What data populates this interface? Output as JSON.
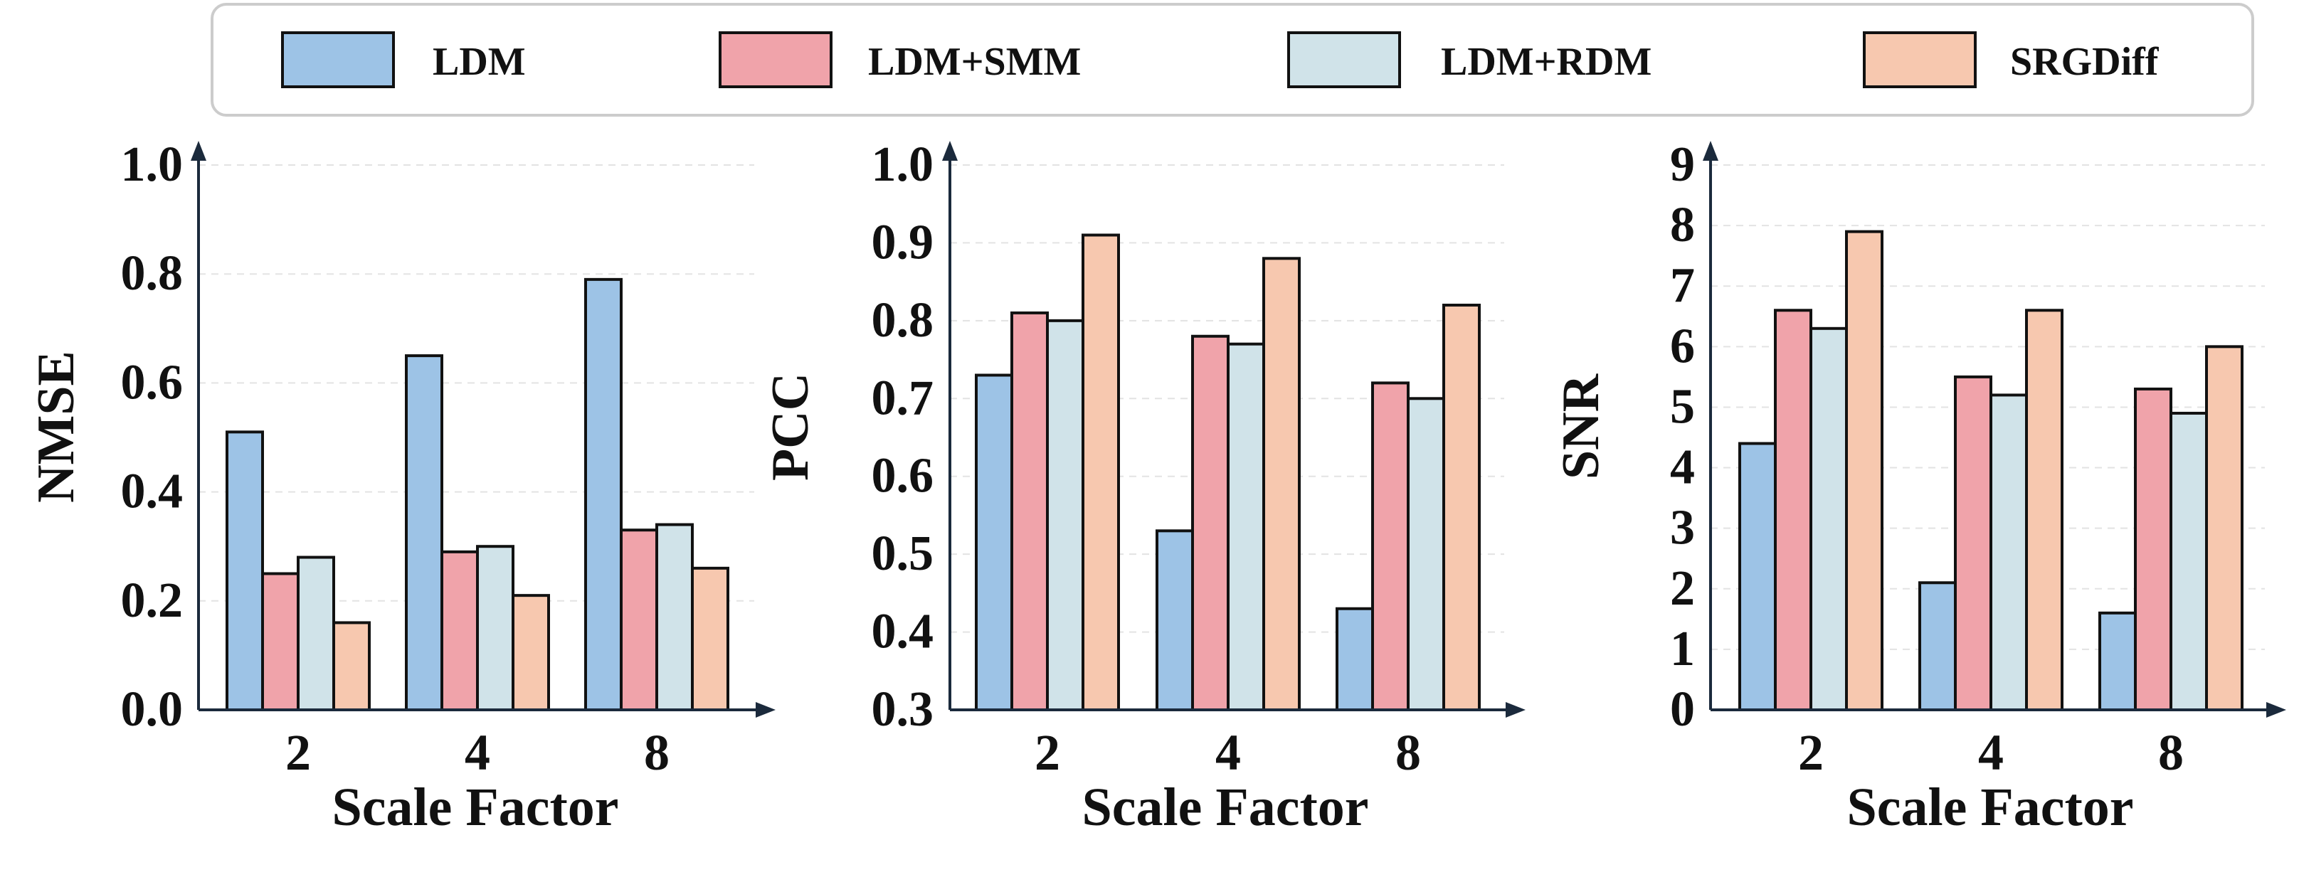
{
  "legend": {
    "placement": "top-center",
    "entries": [
      {
        "label": "LDM",
        "color": "#9DC3E6"
      },
      {
        "label": "LDM+SMM",
        "color": "#F0A3AA"
      },
      {
        "label": "LDM+RDM",
        "color": "#D0E3E9"
      },
      {
        "label": "SRGDiff",
        "color": "#F7C8AF"
      }
    ]
  },
  "chart_data": [
    {
      "type": "bar",
      "categories": [
        "2",
        "4",
        "8"
      ],
      "xlabel": "Scale Factor",
      "ylabel": "NMSE",
      "ylim": [
        0.0,
        1.0
      ],
      "yticks": [
        "0.0",
        "0.2",
        "0.4",
        "0.6",
        "0.8",
        "1.0"
      ],
      "grid": true,
      "series": [
        {
          "name": "LDM",
          "values": [
            0.51,
            0.65,
            0.79
          ]
        },
        {
          "name": "LDM+SMM",
          "values": [
            0.25,
            0.29,
            0.33
          ]
        },
        {
          "name": "LDM+RDM",
          "values": [
            0.28,
            0.3,
            0.34
          ]
        },
        {
          "name": "SRGDiff",
          "values": [
            0.16,
            0.21,
            0.26
          ]
        }
      ]
    },
    {
      "type": "bar",
      "categories": [
        "2",
        "4",
        "8"
      ],
      "xlabel": "Scale Factor",
      "ylabel": "PCC",
      "ylim": [
        0.3,
        1.0
      ],
      "yticks": [
        "0.3",
        "0.4",
        "0.5",
        "0.6",
        "0.7",
        "0.8",
        "0.9",
        "1.0"
      ],
      "grid": true,
      "series": [
        {
          "name": "LDM",
          "values": [
            0.73,
            0.53,
            0.43
          ]
        },
        {
          "name": "LDM+SMM",
          "values": [
            0.81,
            0.78,
            0.72
          ]
        },
        {
          "name": "LDM+RDM",
          "values": [
            0.8,
            0.77,
            0.7
          ]
        },
        {
          "name": "SRGDiff",
          "values": [
            0.91,
            0.88,
            0.82
          ]
        }
      ]
    },
    {
      "type": "bar",
      "categories": [
        "2",
        "4",
        "8"
      ],
      "xlabel": "Scale Factor",
      "ylabel": "SNR",
      "ylim": [
        0,
        9
      ],
      "yticks": [
        "0",
        "1",
        "2",
        "3",
        "4",
        "5",
        "6",
        "7",
        "8",
        "9"
      ],
      "grid": true,
      "series": [
        {
          "name": "LDM",
          "values": [
            4.4,
            2.1,
            1.6
          ]
        },
        {
          "name": "LDM+SMM",
          "values": [
            6.6,
            5.5,
            5.3
          ]
        },
        {
          "name": "LDM+RDM",
          "values": [
            6.3,
            5.2,
            4.9
          ]
        },
        {
          "name": "SRGDiff",
          "values": [
            7.9,
            6.6,
            6.0
          ]
        }
      ]
    }
  ]
}
